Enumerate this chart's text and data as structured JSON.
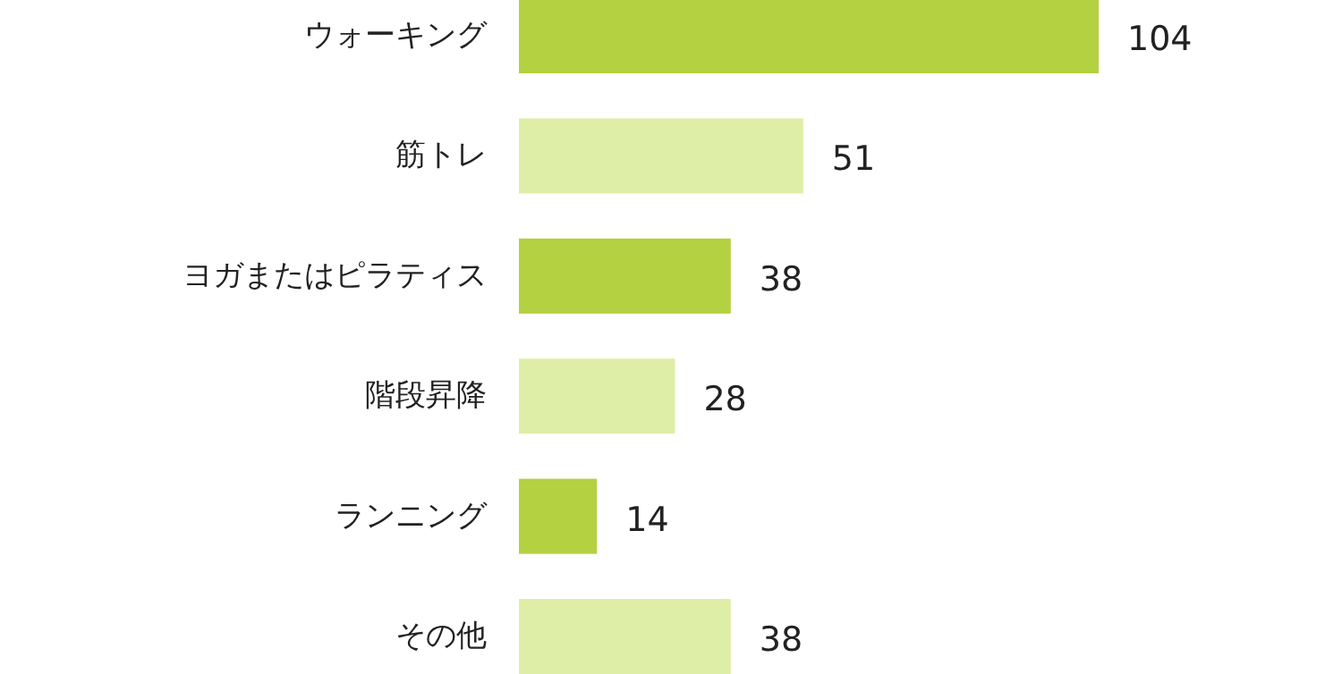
{
  "chart_data": {
    "type": "bar",
    "orientation": "horizontal",
    "categories": [
      "ウォーキング",
      "筋トレ",
      "ヨガまたはピラティス",
      "階段昇降",
      "ランニング",
      "その他"
    ],
    "values": [
      104,
      51,
      38,
      28,
      14,
      38
    ],
    "colors": [
      "#b3d140",
      "#dfeea6",
      "#b3d140",
      "#dfeea6",
      "#b3d140",
      "#dfeea6"
    ],
    "data_labels": true
  }
}
